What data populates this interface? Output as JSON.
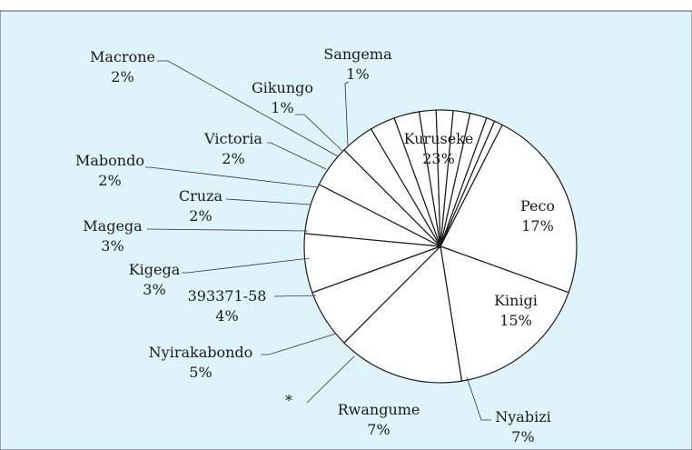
{
  "colors": {
    "background": "#dff4fa",
    "border": "#555555",
    "slice_fill": "#ffffff",
    "stroke": "#1a1a1a",
    "leader": "#333333"
  },
  "chart_data": {
    "type": "pie",
    "title": "",
    "start_angle_deg": -63,
    "direction": "clockwise",
    "slices": [
      {
        "name": "Kuruseke",
        "value": 23,
        "pct_label": "23%"
      },
      {
        "name": "Peco",
        "value": 17,
        "pct_label": "17%"
      },
      {
        "name": "Kinigi",
        "value": 15,
        "pct_label": "15%"
      },
      {
        "name": "Nyabizi",
        "value": 7,
        "pct_label": "7%"
      },
      {
        "name": "Rwangume",
        "value": 7,
        "pct_label": "7%"
      },
      {
        "name": "*",
        "value": 6,
        "pct_label": ""
      },
      {
        "name": "Nyirakabondo",
        "value": 5,
        "pct_label": "5%"
      },
      {
        "name": "393371-58",
        "value": 4,
        "pct_label": "4%"
      },
      {
        "name": "Kigega",
        "value": 3,
        "pct_label": "3%"
      },
      {
        "name": "Magega",
        "value": 3,
        "pct_label": "3%"
      },
      {
        "name": "Cruza",
        "value": 2,
        "pct_label": "2%"
      },
      {
        "name": "Mabondo",
        "value": 2,
        "pct_label": "2%"
      },
      {
        "name": "Victoria",
        "value": 2,
        "pct_label": "2%"
      },
      {
        "name": "Macrone",
        "value": 2,
        "pct_label": "2%"
      },
      {
        "name": "Gikungo",
        "value": 1,
        "pct_label": "1%"
      },
      {
        "name": "Sangema",
        "value": 1,
        "pct_label": "1%"
      }
    ]
  }
}
